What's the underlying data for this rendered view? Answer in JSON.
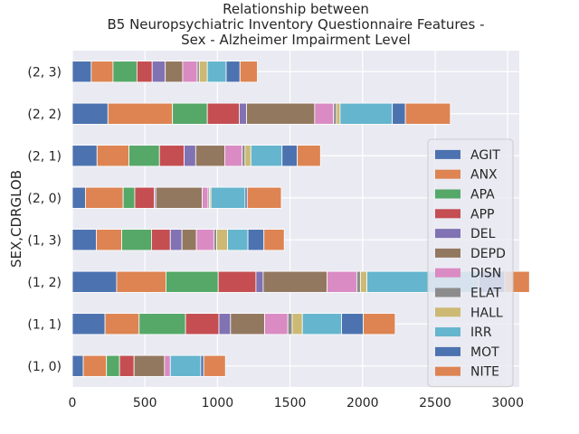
{
  "chart_data": {
    "type": "bar",
    "orientation": "horizontal",
    "stacked": true,
    "title_lines": [
      "Relationship between",
      "B5 Neuropsychiatric Inventory Questionnaire Features -",
      "Sex - Alzheimer Impairment Level"
    ],
    "xlabel": "",
    "ylabel": "SEX,CDRGLOB",
    "xlim": [
      0,
      3080
    ],
    "xticks": [
      0,
      500,
      1000,
      1500,
      2000,
      2500,
      3000
    ],
    "grid": true,
    "legend_position": "right",
    "categories": [
      "(1, 0)",
      "(1, 1)",
      "(1, 2)",
      "(1, 3)",
      "(2, 0)",
      "(2, 1)",
      "(2, 2)",
      "(2, 3)"
    ],
    "series": [
      {
        "name": "AGIT",
        "color": "#4c72b0",
        "values": [
          75,
          225,
          305,
          165,
          90,
          170,
          245,
          130
        ]
      },
      {
        "name": "ANX",
        "color": "#dd8452",
        "values": [
          160,
          235,
          340,
          175,
          260,
          220,
          445,
          150
        ]
      },
      {
        "name": "APA",
        "color": "#55a868",
        "values": [
          90,
          320,
          360,
          205,
          80,
          210,
          240,
          165
        ]
      },
      {
        "name": "APP",
        "color": "#c44e52",
        "values": [
          100,
          230,
          260,
          130,
          135,
          170,
          220,
          105
        ]
      },
      {
        "name": "DEL",
        "color": "#8172b3",
        "values": [
          0,
          80,
          50,
          80,
          10,
          80,
          50,
          90
        ]
      },
      {
        "name": "DEPD",
        "color": "#937860",
        "values": [
          210,
          235,
          440,
          100,
          320,
          200,
          470,
          120
        ]
      },
      {
        "name": "DISN",
        "color": "#da8bc3",
        "values": [
          40,
          160,
          205,
          120,
          40,
          120,
          130,
          100
        ]
      },
      {
        "name": "ELAT",
        "color": "#8c8c8c",
        "values": [
          0,
          30,
          25,
          20,
          10,
          20,
          20,
          15
        ]
      },
      {
        "name": "HALL",
        "color": "#ccb974",
        "values": [
          0,
          70,
          45,
          75,
          10,
          40,
          25,
          55
        ]
      },
      {
        "name": "IRR",
        "color": "#64b5cd",
        "values": [
          210,
          270,
          770,
          140,
          235,
          215,
          360,
          130
        ]
      },
      {
        "name": "MOT",
        "color": "#4c72b0",
        "values": [
          20,
          150,
          180,
          110,
          15,
          105,
          90,
          95
        ]
      },
      {
        "name": "NITE",
        "color": "#dd8452",
        "values": [
          150,
          220,
          170,
          140,
          235,
          160,
          310,
          120
        ]
      }
    ]
  }
}
